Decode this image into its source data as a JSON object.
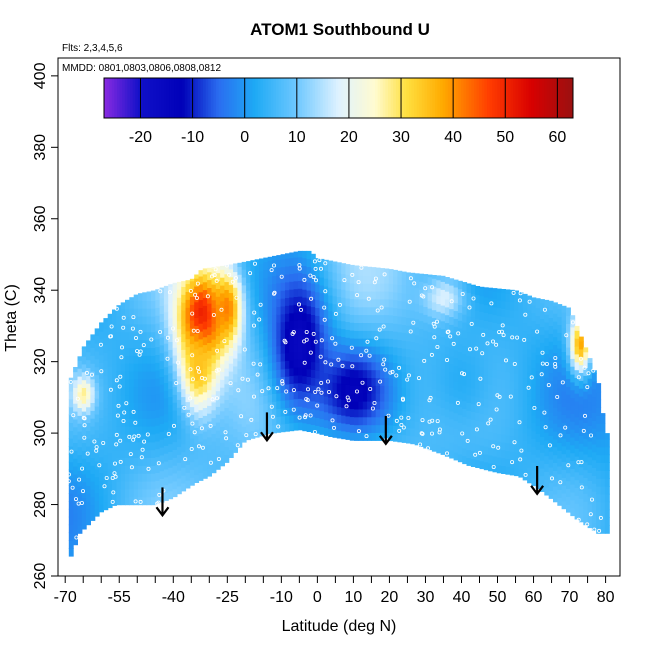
{
  "chart_data": {
    "type": "heatmap",
    "title": "ATOM1 Southbound U",
    "subtitle_flights": "Flts: 2,3,4,5,6",
    "subtitle_dates": "MMDD: 0801,0803,0806,0808,0812",
    "xlabel": "Latitude (deg N)",
    "ylabel": "Theta (C)",
    "xlim": [
      -72,
      84
    ],
    "ylim": [
      260,
      405
    ],
    "x_ticks": [
      -70,
      -55,
      -40,
      -25,
      -10,
      0,
      10,
      20,
      30,
      40,
      50,
      60,
      70,
      80
    ],
    "x_tick_labels": [
      "-70",
      "-55",
      "-40",
      "-25",
      "-10",
      "0",
      "10",
      "20",
      "30",
      "40",
      "50",
      "60",
      "70",
      "80"
    ],
    "x_minor_ticks": [
      -65,
      -60,
      -50,
      -45,
      -35,
      -30,
      -20,
      -15,
      -5,
      5,
      15,
      25,
      35,
      45,
      55,
      65,
      75
    ],
    "y_ticks": [
      260,
      280,
      300,
      320,
      340,
      360,
      380,
      400
    ],
    "y_tick_labels": [
      "260",
      "280",
      "300",
      "320",
      "340",
      "360",
      "380",
      "400"
    ],
    "colorbar": {
      "min": -27,
      "max": 63,
      "ticks": [
        -20,
        -10,
        0,
        10,
        20,
        30,
        40,
        50,
        60
      ],
      "tick_labels": [
        "-20",
        "-10",
        "0",
        "10",
        "20",
        "30",
        "40",
        "50",
        "60"
      ],
      "stops": [
        {
          "v": -27,
          "c": "#8a2be2"
        },
        {
          "v": -20,
          "c": "#1010c8"
        },
        {
          "v": -12,
          "c": "#0000b8"
        },
        {
          "v": -5,
          "c": "#2a6df0"
        },
        {
          "v": 2,
          "c": "#1eaaf5"
        },
        {
          "v": 10,
          "c": "#6ec8ff"
        },
        {
          "v": 18,
          "c": "#dff2ff"
        },
        {
          "v": 25,
          "c": "#fffbd0"
        },
        {
          "v": 31,
          "c": "#ffe040"
        },
        {
          "v": 38,
          "c": "#ffaa00"
        },
        {
          "v": 47,
          "c": "#ff3c00"
        },
        {
          "v": 55,
          "c": "#d80000"
        },
        {
          "v": 63,
          "c": "#9a1010"
        }
      ]
    },
    "lower_boundary": {
      "latitudes": [
        -69,
        -66,
        -60,
        -56,
        -50,
        -45,
        -40,
        -34,
        -30,
        -25,
        -20,
        -13,
        -5,
        0,
        4,
        10,
        15,
        20,
        27,
        35,
        42,
        50,
        56,
        62,
        67,
        72,
        78,
        80
      ],
      "theta": [
        264,
        272,
        278,
        280,
        280,
        280,
        282,
        286,
        288,
        292,
        298,
        300,
        301,
        300,
        299,
        298,
        298,
        298,
        297,
        294,
        291,
        289,
        288,
        284,
        280,
        276,
        272,
        272
      ]
    },
    "upper_boundary": {
      "latitudes": [
        -69,
        -65,
        -60,
        -55,
        -50,
        -45,
        -40,
        -35,
        -32,
        -25,
        -20,
        -15,
        -10,
        -5,
        -2,
        0,
        5,
        10,
        20,
        25,
        35,
        45,
        55,
        60,
        65,
        70,
        76,
        78,
        80
      ],
      "theta": [
        314,
        324,
        331,
        336,
        339,
        340,
        342,
        343,
        346,
        347,
        348,
        349,
        350,
        351,
        351,
        349,
        348,
        347,
        346,
        345,
        344,
        341,
        340,
        338,
        337,
        335,
        320,
        314,
        300
      ]
    },
    "wind_features": [
      {
        "lat": -32,
        "theta": 332,
        "u": 55,
        "lat_width": 7,
        "theta_width": 14
      },
      {
        "lat": -25,
        "theta": 335,
        "u": 42,
        "lat_width": 4,
        "theta_width": 10
      },
      {
        "lat": -33,
        "theta": 318,
        "u": 35,
        "lat_width": 5,
        "theta_width": 12
      },
      {
        "lat": -65,
        "theta": 311,
        "u": 28,
        "lat_width": 3,
        "theta_width": 5
      },
      {
        "lat": 73,
        "theta": 325,
        "u": 38,
        "lat_width": 3,
        "theta_width": 8
      },
      {
        "lat": -5,
        "theta": 325,
        "u": -16,
        "lat_width": 9,
        "theta_width": 22
      },
      {
        "lat": 10,
        "theta": 312,
        "u": -14,
        "lat_width": 10,
        "theta_width": 12
      },
      {
        "lat": 40,
        "theta": 315,
        "u": 3,
        "lat_width": 12,
        "theta_width": 18
      },
      {
        "lat": 35,
        "theta": 338,
        "u": 18,
        "lat_width": 6,
        "theta_width": 6
      }
    ],
    "arrows": [
      {
        "lat": -43,
        "theta_top": 282,
        "theta_tip": 277
      },
      {
        "lat": -14,
        "theta_top": 303,
        "theta_tip": 298
      },
      {
        "lat": 19,
        "theta_top": 302,
        "theta_tip": 297
      },
      {
        "lat": 61,
        "theta_top": 288,
        "theta_tip": 283
      }
    ]
  }
}
